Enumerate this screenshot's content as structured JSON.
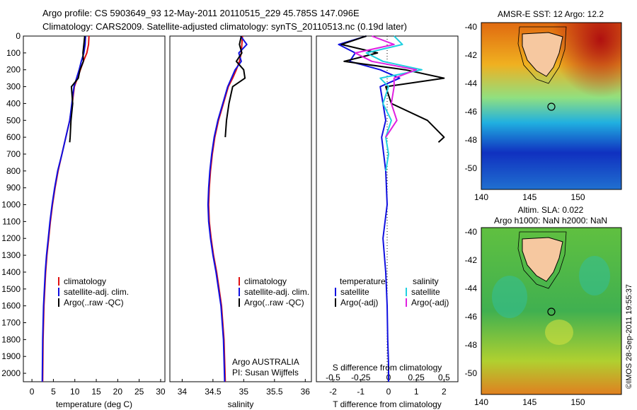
{
  "header": {
    "line1": "Argo profile: CS 5903649_93 12-May-2011 20110515_229 45.785S 147.096E",
    "line2": "Climatology: CARS2009. Satellite-adjusted climatology: synTS_20110513.nc (0.19d later)"
  },
  "side_text": "©IMOS 28-Sep-2011 19:55:37",
  "colors": {
    "climatology": "#e01010",
    "satellite": "#1010e0",
    "argo": "#000000",
    "sal_satellite": "#20d0e0",
    "sal_argo": "#e020e0"
  },
  "chart_data": [
    {
      "type": "line",
      "id": "temperature",
      "xlabel": "temperature (deg C)",
      "ylabel": "",
      "xlim": [
        -2,
        31
      ],
      "ylim": [
        2050,
        0
      ],
      "xticks": [
        0,
        5,
        10,
        15,
        20,
        25,
        30
      ],
      "yticks": [
        0,
        100,
        200,
        300,
        400,
        500,
        600,
        700,
        800,
        900,
        1000,
        1100,
        1200,
        1300,
        1400,
        1500,
        1600,
        1700,
        1800,
        1900,
        2000
      ],
      "legend": [
        "climatology",
        "satellite-adj. clim.",
        "Argo(..raw -QC)"
      ],
      "series": [
        {
          "name": "climatology",
          "x": [
            13.3,
            13.2,
            12.8,
            12.0,
            11.3,
            10.6,
            9.9,
            9.4,
            8.8,
            7.9,
            7.0,
            6.1,
            5.4,
            4.8,
            4.3,
            3.9,
            3.5,
            3.2,
            3.0,
            2.8,
            2.6,
            2.5
          ],
          "y": [
            0,
            50,
            100,
            150,
            200,
            250,
            300,
            400,
            500,
            600,
            700,
            800,
            900,
            1000,
            1100,
            1200,
            1300,
            1400,
            1500,
            1600,
            1800,
            2050
          ]
        },
        {
          "name": "satellite-adj. clim.",
          "x": [
            12.5,
            12.4,
            12.1,
            11.5,
            11.0,
            10.4,
            9.8,
            9.3,
            8.8,
            7.9,
            7.0,
            6.0,
            5.3,
            4.7,
            4.2,
            3.8,
            3.4,
            3.1,
            2.9,
            2.7,
            2.5,
            2.4
          ],
          "y": [
            0,
            50,
            100,
            150,
            200,
            250,
            300,
            400,
            500,
            600,
            700,
            800,
            900,
            1000,
            1100,
            1200,
            1300,
            1400,
            1500,
            1600,
            1800,
            2050
          ]
        },
        {
          "name": "Argo(..raw -QC)",
          "x": [
            12.3,
            12.1,
            11.9,
            12.0,
            11.2,
            10.8,
            9.2,
            9.5,
            9.1,
            8.9,
            8.8
          ],
          "y": [
            0,
            50,
            100,
            150,
            200,
            250,
            300,
            400,
            500,
            600,
            630
          ]
        }
      ]
    },
    {
      "type": "line",
      "id": "salinity",
      "xlabel": "salinity",
      "xlim": [
        33.8,
        36.1
      ],
      "ylim": [
        2050,
        0
      ],
      "xticks": [
        34,
        34.5,
        35,
        35.5,
        36
      ],
      "legend": [
        "climatology",
        "satellite-adj. clim.",
        "Argo(..raw -QC)"
      ],
      "annotation": [
        "Argo AUSTRALIA",
        "PI: Susan Wijffels"
      ],
      "series": [
        {
          "name": "climatology",
          "x": [
            34.98,
            34.97,
            34.96,
            34.93,
            34.88,
            34.82,
            34.75,
            34.67,
            34.59,
            34.53,
            34.49,
            34.46,
            34.44,
            34.43,
            34.44,
            34.47,
            34.51,
            34.56,
            34.6,
            34.64,
            34.68,
            34.7
          ],
          "y": [
            0,
            50,
            100,
            150,
            200,
            250,
            300,
            400,
            500,
            600,
            700,
            800,
            900,
            1000,
            1100,
            1200,
            1300,
            1400,
            1500,
            1600,
            1800,
            2050
          ]
        },
        {
          "name": "satellite-adj. clim.",
          "x": [
            34.95,
            35.05,
            34.92,
            34.96,
            34.86,
            34.8,
            34.74,
            34.66,
            34.58,
            34.52,
            34.48,
            34.45,
            34.43,
            34.42,
            34.43,
            34.46,
            34.5,
            34.55,
            34.59,
            34.63,
            34.67,
            34.69
          ],
          "y": [
            0,
            50,
            100,
            150,
            200,
            250,
            300,
            400,
            500,
            600,
            700,
            800,
            900,
            1000,
            1100,
            1200,
            1300,
            1400,
            1500,
            1600,
            1800,
            2050
          ]
        },
        {
          "name": "Argo(..raw -QC)",
          "x": [
            34.96,
            34.93,
            34.97,
            34.88,
            35.0,
            35.02,
            34.82,
            34.76,
            34.72,
            34.7
          ],
          "y": [
            0,
            50,
            100,
            150,
            200,
            250,
            300,
            400,
            500,
            600
          ]
        }
      ]
    },
    {
      "type": "line",
      "id": "differences",
      "xlabel": "T difference from climatology",
      "xlabel2": "S difference from climatology",
      "xlim": [
        -2.6,
        2.5
      ],
      "xticks": [
        -2,
        -1,
        0,
        1,
        2
      ],
      "xticks2": [
        -0.5,
        -0.25,
        0,
        0.25,
        0.5
      ],
      "legend_temperature_title": "temperature",
      "legend_salinity_title": "salinity",
      "legend": [
        "satellite",
        "Argo(-adj)",
        "satellite",
        "Argo(-adj)"
      ],
      "series": [
        {
          "name": "satellite",
          "x": [
            -0.8,
            -1.8,
            -1.2,
            -1.4,
            -0.3,
            0.4,
            -0.3,
            -0.2,
            -0.1,
            -0.25,
            -0.1,
            -0.05,
            -0.2,
            -0.1,
            -0.05,
            -0.03,
            0,
            0
          ],
          "y": [
            0,
            50,
            100,
            150,
            200,
            250,
            300,
            400,
            500,
            600,
            800,
            1000,
            1200,
            1400,
            1600,
            1800,
            1950,
            2050
          ]
        },
        {
          "name": "Argo(-adj)",
          "x": [
            -0.8,
            -1.7,
            -0.4,
            -1.6,
            0.6,
            2.0,
            -0.1,
            0.1,
            1.4,
            2.0,
            1.8
          ],
          "y": [
            0,
            50,
            100,
            150,
            200,
            250,
            300,
            400,
            500,
            600,
            630
          ]
        },
        {
          "name": "satellite",
          "x": [
            0.2,
            0.5,
            -0.8,
            -0.2,
            1.2,
            -0.3,
            0.0,
            -0.2,
            0.1,
            -0.1,
            0.0,
            -0.1
          ],
          "y": [
            0,
            50,
            100,
            150,
            200,
            250,
            300,
            400,
            500,
            600,
            700,
            800
          ]
        },
        {
          "name": "Argo(-adj)",
          "x": [
            -0.6,
            0.2,
            -1.2,
            -0.6,
            1.0,
            0.2,
            0.2,
            0.1,
            0.3,
            -0.1
          ],
          "y": [
            0,
            50,
            100,
            150,
            200,
            250,
            300,
            400,
            500,
            600
          ]
        }
      ]
    },
    {
      "type": "heatmap",
      "id": "sst",
      "title": "AMSR-E SST: 12 Argo: 12.2",
      "xlim": [
        140,
        154.5
      ],
      "ylim": [
        -51.5,
        -39.7
      ],
      "xticks": [
        140,
        145,
        150
      ],
      "yticks": [
        -40,
        -42,
        -44,
        -46,
        -48,
        -50
      ],
      "marker": [
        147.1,
        -45.8
      ]
    },
    {
      "type": "heatmap",
      "id": "sla",
      "title": "Altim. SLA: 0.022",
      "subtitle": "Argo h1000: NaN h2000: NaN",
      "xlim": [
        140,
        154.5
      ],
      "ylim": [
        -51.5,
        -39.7
      ],
      "xticks": [
        140,
        145,
        150
      ],
      "yticks": [
        -40,
        -42,
        -44,
        -46,
        -48,
        -50
      ],
      "marker": [
        147.1,
        -45.8
      ]
    }
  ]
}
